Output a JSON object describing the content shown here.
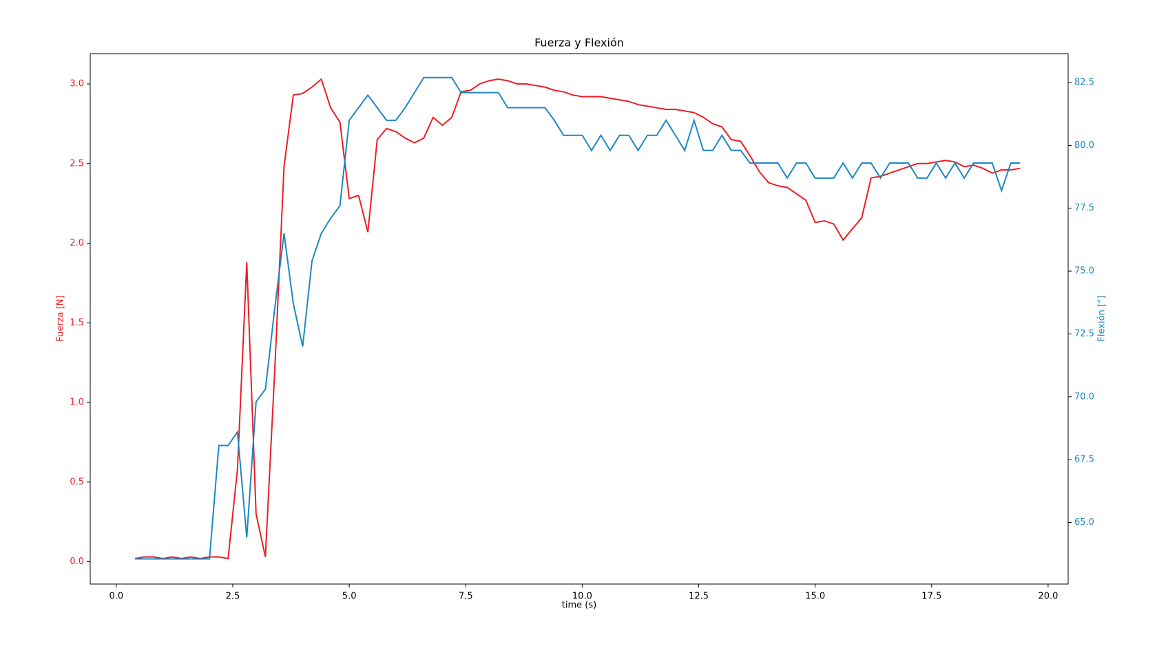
{
  "chart_data": {
    "type": "line",
    "title": "Fuerza y Flexión",
    "x_label": "time (s)",
    "y_label": "Fuerza [N]",
    "y2_label": "Flexión [°]",
    "x": [
      0.4,
      0.6,
      0.8,
      1.0,
      1.2,
      1.4,
      1.6,
      1.8,
      2.0,
      2.2,
      2.4,
      2.6,
      2.8,
      3.0,
      3.2,
      3.4,
      3.6,
      3.8,
      4.0,
      4.2,
      4.4,
      4.6,
      4.8,
      5.0,
      5.2,
      5.4,
      5.6,
      5.8,
      6.0,
      6.2,
      6.4,
      6.6,
      6.8,
      7.0,
      7.2,
      7.4,
      7.6,
      7.8,
      8.0,
      8.2,
      8.4,
      8.6,
      8.8,
      9.0,
      9.2,
      9.4,
      9.6,
      9.8,
      10.0,
      10.2,
      10.4,
      10.6,
      10.8,
      11.0,
      11.2,
      11.4,
      11.6,
      11.8,
      12.0,
      12.2,
      12.4,
      12.6,
      12.8,
      13.0,
      13.2,
      13.4,
      13.6,
      13.8,
      14.0,
      14.2,
      14.4,
      14.6,
      14.8,
      15.0,
      15.2,
      15.4,
      15.6,
      15.8,
      16.0,
      16.2,
      16.4,
      16.6,
      16.8,
      17.0,
      17.2,
      17.4,
      17.6,
      17.8,
      18.0,
      18.2,
      18.4,
      18.6,
      18.8,
      19.0,
      19.2,
      19.4
    ],
    "series": [
      {
        "color": "#ee1c25",
        "axis": "y",
        "values": [
          0.02,
          0.03,
          0.03,
          0.02,
          0.03,
          0.02,
          0.03,
          0.02,
          0.03,
          0.03,
          0.02,
          0.58,
          1.88,
          0.3,
          0.03,
          1.2,
          2.48,
          2.93,
          2.94,
          2.98,
          3.03,
          2.85,
          2.76,
          2.28,
          2.3,
          2.07,
          2.65,
          2.72,
          2.7,
          2.66,
          2.63,
          2.66,
          2.79,
          2.74,
          2.79,
          2.95,
          2.96,
          3.0,
          3.02,
          3.03,
          3.02,
          3.0,
          3.0,
          2.99,
          2.98,
          2.96,
          2.95,
          2.93,
          2.92,
          2.92,
          2.92,
          2.91,
          2.9,
          2.89,
          2.87,
          2.86,
          2.85,
          2.84,
          2.84,
          2.83,
          2.82,
          2.79,
          2.75,
          2.73,
          2.65,
          2.64,
          2.55,
          2.45,
          2.38,
          2.36,
          2.35,
          2.31,
          2.27,
          2.13,
          2.14,
          2.12,
          2.02,
          2.09,
          2.16,
          2.41,
          2.42,
          2.44,
          2.46,
          2.48,
          2.5,
          2.5,
          2.51,
          2.52,
          2.51,
          2.48,
          2.49,
          2.47,
          2.44,
          2.46,
          2.46,
          2.47
        ]
      },
      {
        "color": "#1b87c5",
        "axis": "y2",
        "values": [
          63.55,
          63.55,
          63.55,
          63.55,
          63.55,
          63.55,
          63.55,
          63.55,
          63.55,
          68.06,
          68.06,
          68.6,
          64.4,
          69.8,
          70.3,
          73.5,
          76.5,
          73.7,
          72.0,
          75.4,
          76.5,
          77.1,
          77.6,
          81.0,
          81.5,
          82.0,
          81.5,
          81.0,
          81.0,
          81.5,
          82.1,
          82.7,
          82.7,
          82.7,
          82.7,
          82.1,
          82.1,
          82.1,
          82.1,
          82.1,
          81.5,
          81.5,
          81.5,
          81.5,
          81.5,
          81.0,
          80.4,
          80.4,
          80.4,
          79.8,
          80.4,
          79.8,
          80.4,
          80.4,
          79.8,
          80.4,
          80.4,
          81.0,
          80.4,
          79.8,
          81.0,
          79.8,
          79.8,
          80.4,
          79.8,
          79.8,
          79.3,
          79.3,
          79.3,
          79.3,
          78.7,
          79.3,
          79.3,
          78.7,
          78.7,
          78.7,
          79.3,
          78.7,
          79.3,
          79.3,
          78.7,
          79.3,
          79.3,
          79.3,
          78.7,
          78.7,
          79.3,
          78.7,
          79.3,
          78.7,
          79.3,
          79.3,
          79.3,
          78.2,
          79.3,
          79.3
        ]
      }
    ],
    "xlim": [
      -0.56,
      20.43
    ],
    "xticks": [
      {
        "value": 0,
        "label": "0.0"
      },
      2.5,
      {
        "value": 5,
        "label": "5.0"
      },
      7.5,
      {
        "value": 10,
        "label": "10.0"
      },
      12.5,
      {
        "value": 15,
        "label": "15.0"
      },
      17.5,
      {
        "value": 20,
        "label": "20.0"
      }
    ],
    "ylim": [
      -0.14,
      3.19
    ],
    "yticks": [
      {
        "value": 0,
        "label": "0.0"
      },
      0.5,
      {
        "value": 1,
        "label": "1.0"
      },
      1.5,
      {
        "value": 2,
        "label": "2.0"
      },
      2.5,
      {
        "value": 3,
        "label": "3.0"
      }
    ],
    "y2lim": [
      62.55,
      83.65
    ],
    "y2ticks": [
      {
        "value": 65,
        "label": "65.0"
      },
      67.5,
      {
        "value": 70,
        "label": "70.0"
      },
      72.5,
      {
        "value": 75,
        "label": "75.0"
      },
      77.5,
      {
        "value": 80,
        "label": "80.0"
      },
      82.5
    ],
    "grid": false
  }
}
